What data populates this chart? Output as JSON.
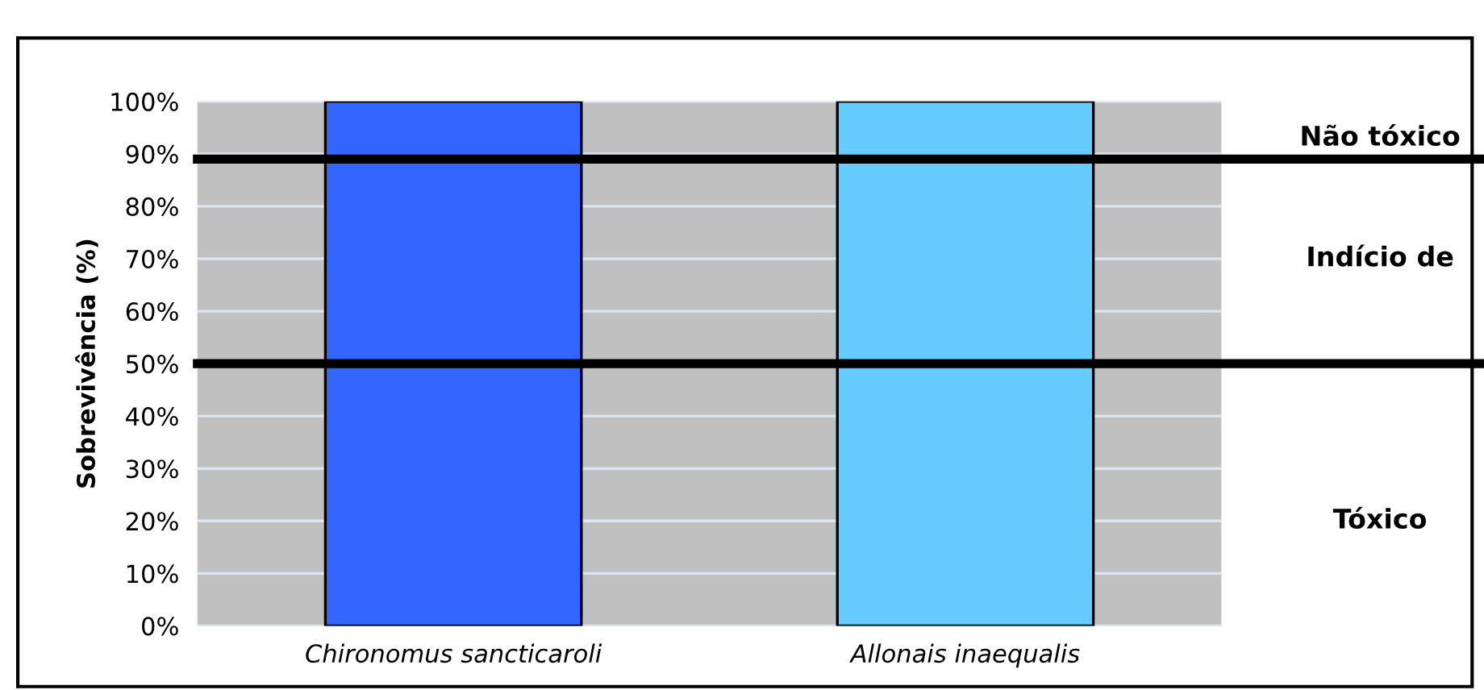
{
  "chart_data": {
    "type": "bar",
    "ylabel": "Sobrevivência (%)",
    "categories": [
      "Chironomus sancticaroli",
      "Allonais inaequalis"
    ],
    "values": [
      100,
      100
    ],
    "colors": [
      "#3366ff",
      "#66ccff"
    ],
    "ylim": [
      0,
      100
    ],
    "yticks": [
      {
        "value": 0,
        "label": "0%"
      },
      {
        "value": 10,
        "label": "10%"
      },
      {
        "value": 20,
        "label": "20%"
      },
      {
        "value": 30,
        "label": "30%"
      },
      {
        "value": 40,
        "label": "40%"
      },
      {
        "value": 50,
        "label": "50%"
      },
      {
        "value": 60,
        "label": "60%"
      },
      {
        "value": 70,
        "label": "70%"
      },
      {
        "value": 80,
        "label": "80%"
      },
      {
        "value": 90,
        "label": "90%"
      },
      {
        "value": 100,
        "label": "100%"
      }
    ],
    "grid": "y",
    "ref_lines": [
      {
        "axis": "y",
        "value": 89,
        "color": "#000000"
      },
      {
        "axis": "y",
        "value": 50,
        "color": "#000000"
      }
    ],
    "annotations": [
      "Não tóxico",
      "Indício de",
      "Tóxico"
    ]
  }
}
